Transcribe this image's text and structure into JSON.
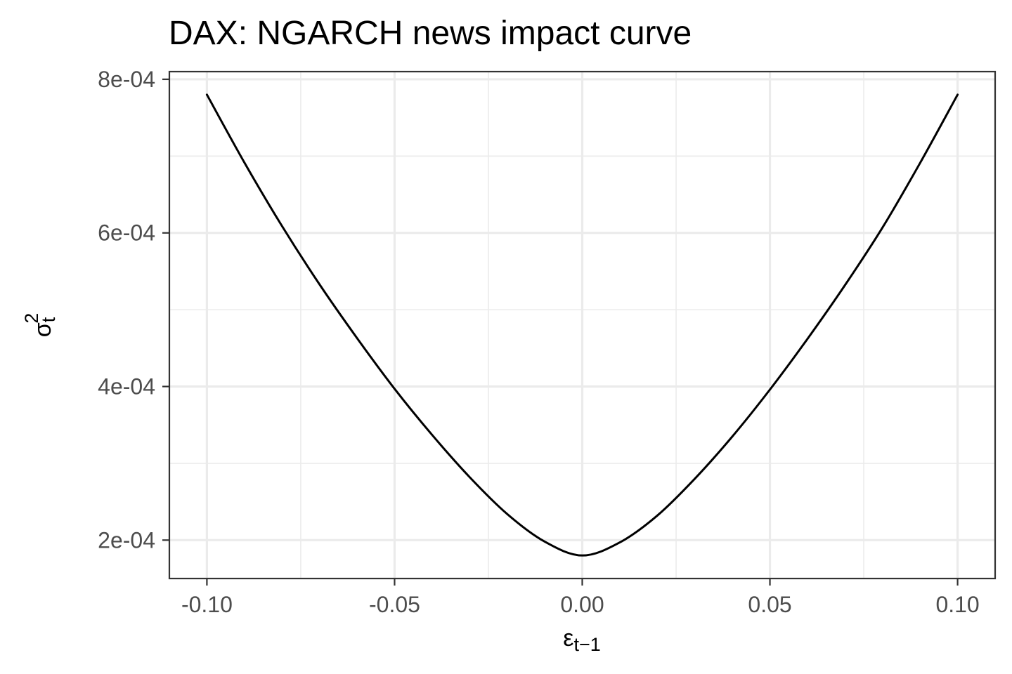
{
  "chart_data": {
    "type": "line",
    "title": "DAX: NGARCH news impact curve",
    "xlabel": {
      "base": "ε",
      "sub": "t−1"
    },
    "ylabel": {
      "base": "σ",
      "sub": "t",
      "sup": "2"
    },
    "xlim": [
      -0.11,
      0.11
    ],
    "ylim": [
      0.00015,
      0.00081
    ],
    "x_ticks": [
      -0.1,
      -0.05,
      0.0,
      0.05,
      0.1
    ],
    "x_tick_labels": [
      "-0.10",
      "-0.05",
      "0.00",
      "0.05",
      "0.10"
    ],
    "x_minor_ticks": [
      -0.075,
      -0.025,
      0.025,
      0.075
    ],
    "y_ticks": [
      0.0002,
      0.0004,
      0.0006,
      0.0008
    ],
    "y_tick_labels": [
      "2e-04",
      "4e-04",
      "6e-04",
      "8e-04"
    ],
    "y_minor_ticks": [
      0.0003,
      0.0005,
      0.0007
    ],
    "grid": true,
    "line_color": "#000000",
    "series": [
      {
        "x": [
          -0.1,
          -0.09,
          -0.08,
          -0.07,
          -0.06,
          -0.05,
          -0.04,
          -0.03,
          -0.02,
          -0.01,
          0.0,
          0.01,
          0.02,
          0.03,
          0.04,
          0.05,
          0.06,
          0.07,
          0.08,
          0.09,
          0.1
        ],
        "y": [
          0.00078,
          0.0006915,
          0.000609,
          0.000533,
          0.000463,
          0.000397,
          0.000337,
          0.000282,
          0.000234,
          0.000198,
          0.00018,
          0.000197,
          0.000232,
          0.00028,
          0.000335,
          0.000396,
          0.000462,
          0.000532,
          0.000607,
          0.000691,
          0.00078
        ]
      }
    ]
  }
}
